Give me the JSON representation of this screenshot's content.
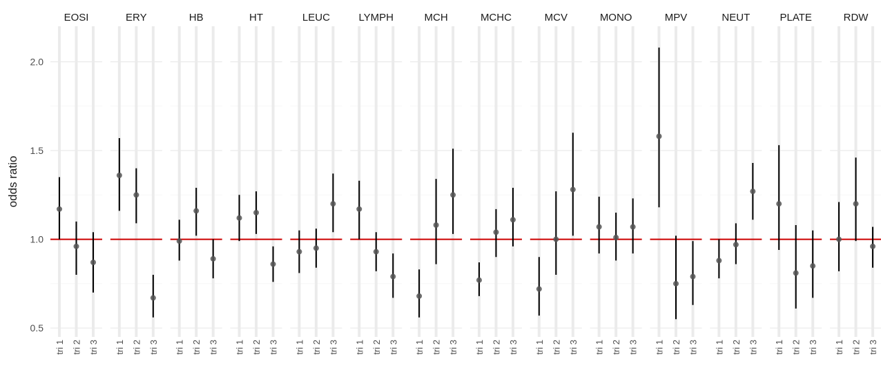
{
  "chart_data": {
    "type": "forest",
    "ylabel": "odds ratio",
    "yticks": [
      "0.5",
      "1.0",
      "1.5",
      "2.0"
    ],
    "ylim": [
      0.45,
      2.2
    ],
    "reference_line": 1.0,
    "reference_color": "#cc0000",
    "point_color": "#555555",
    "interval_color": "#000000",
    "grid_color": "#ebebeb",
    "categories": [
      "tri 1",
      "tri 2",
      "tri 3"
    ],
    "panels": [
      {
        "name": "EOSI",
        "points": [
          {
            "x": "tri 1",
            "y": 1.17,
            "lo": 1.0,
            "hi": 1.35
          },
          {
            "x": "tri 2",
            "y": 0.96,
            "lo": 0.8,
            "hi": 1.1
          },
          {
            "x": "tri 3",
            "y": 0.87,
            "lo": 0.7,
            "hi": 1.04
          }
        ]
      },
      {
        "name": "ERY",
        "points": [
          {
            "x": "tri 1",
            "y": 1.36,
            "lo": 1.16,
            "hi": 1.57
          },
          {
            "x": "tri 2",
            "y": 1.25,
            "lo": 1.09,
            "hi": 1.4
          },
          {
            "x": "tri 3",
            "y": 0.67,
            "lo": 0.56,
            "hi": 0.8
          }
        ]
      },
      {
        "name": "HB",
        "points": [
          {
            "x": "tri 1",
            "y": 0.99,
            "lo": 0.88,
            "hi": 1.11
          },
          {
            "x": "tri 2",
            "y": 1.16,
            "lo": 1.02,
            "hi": 1.29
          },
          {
            "x": "tri 3",
            "y": 0.89,
            "lo": 0.78,
            "hi": 1.0
          }
        ]
      },
      {
        "name": "HT",
        "points": [
          {
            "x": "tri 1",
            "y": 1.12,
            "lo": 0.99,
            "hi": 1.25
          },
          {
            "x": "tri 2",
            "y": 1.15,
            "lo": 1.03,
            "hi": 1.27
          },
          {
            "x": "tri 3",
            "y": 0.86,
            "lo": 0.76,
            "hi": 0.96
          }
        ]
      },
      {
        "name": "LEUC",
        "points": [
          {
            "x": "tri 1",
            "y": 0.93,
            "lo": 0.81,
            "hi": 1.05
          },
          {
            "x": "tri 2",
            "y": 0.95,
            "lo": 0.84,
            "hi": 1.06
          },
          {
            "x": "tri 3",
            "y": 1.2,
            "lo": 1.04,
            "hi": 1.37
          }
        ]
      },
      {
        "name": "LYMPH",
        "points": [
          {
            "x": "tri 1",
            "y": 1.17,
            "lo": 1.0,
            "hi": 1.33
          },
          {
            "x": "tri 2",
            "y": 0.93,
            "lo": 0.82,
            "hi": 1.04
          },
          {
            "x": "tri 3",
            "y": 0.79,
            "lo": 0.67,
            "hi": 0.92
          }
        ]
      },
      {
        "name": "MCH",
        "points": [
          {
            "x": "tri 1",
            "y": 0.68,
            "lo": 0.56,
            "hi": 0.83
          },
          {
            "x": "tri 2",
            "y": 1.08,
            "lo": 0.86,
            "hi": 1.34
          },
          {
            "x": "tri 3",
            "y": 1.25,
            "lo": 1.03,
            "hi": 1.51
          }
        ]
      },
      {
        "name": "MCHC",
        "points": [
          {
            "x": "tri 1",
            "y": 0.77,
            "lo": 0.68,
            "hi": 0.87
          },
          {
            "x": "tri 2",
            "y": 1.04,
            "lo": 0.9,
            "hi": 1.17
          },
          {
            "x": "tri 3",
            "y": 1.11,
            "lo": 0.96,
            "hi": 1.29
          }
        ]
      },
      {
        "name": "MCV",
        "points": [
          {
            "x": "tri 1",
            "y": 0.72,
            "lo": 0.57,
            "hi": 0.9
          },
          {
            "x": "tri 2",
            "y": 1.0,
            "lo": 0.8,
            "hi": 1.27
          },
          {
            "x": "tri 3",
            "y": 1.28,
            "lo": 1.02,
            "hi": 1.6
          }
        ]
      },
      {
        "name": "MONO",
        "points": [
          {
            "x": "tri 1",
            "y": 1.07,
            "lo": 0.92,
            "hi": 1.24
          },
          {
            "x": "tri 2",
            "y": 1.01,
            "lo": 0.88,
            "hi": 1.15
          },
          {
            "x": "tri 3",
            "y": 1.07,
            "lo": 0.92,
            "hi": 1.23
          }
        ]
      },
      {
        "name": "MPV",
        "points": [
          {
            "x": "tri 1",
            "y": 1.58,
            "lo": 1.18,
            "hi": 2.08
          },
          {
            "x": "tri 2",
            "y": 0.75,
            "lo": 0.55,
            "hi": 1.02
          },
          {
            "x": "tri 3",
            "y": 0.79,
            "lo": 0.63,
            "hi": 0.99
          }
        ]
      },
      {
        "name": "NEUT",
        "points": [
          {
            "x": "tri 1",
            "y": 0.88,
            "lo": 0.78,
            "hi": 1.0
          },
          {
            "x": "tri 2",
            "y": 0.97,
            "lo": 0.86,
            "hi": 1.09
          },
          {
            "x": "tri 3",
            "y": 1.27,
            "lo": 1.11,
            "hi": 1.43
          }
        ]
      },
      {
        "name": "PLATE",
        "points": [
          {
            "x": "tri 1",
            "y": 1.2,
            "lo": 0.94,
            "hi": 1.53
          },
          {
            "x": "tri 2",
            "y": 0.81,
            "lo": 0.61,
            "hi": 1.08
          },
          {
            "x": "tri 3",
            "y": 0.85,
            "lo": 0.67,
            "hi": 1.05
          }
        ]
      },
      {
        "name": "RDW",
        "points": [
          {
            "x": "tri 1",
            "y": 1.0,
            "lo": 0.82,
            "hi": 1.21
          },
          {
            "x": "tri 2",
            "y": 1.2,
            "lo": 0.99,
            "hi": 1.46
          },
          {
            "x": "tri 3",
            "y": 0.96,
            "lo": 0.84,
            "hi": 1.07
          }
        ]
      }
    ]
  }
}
